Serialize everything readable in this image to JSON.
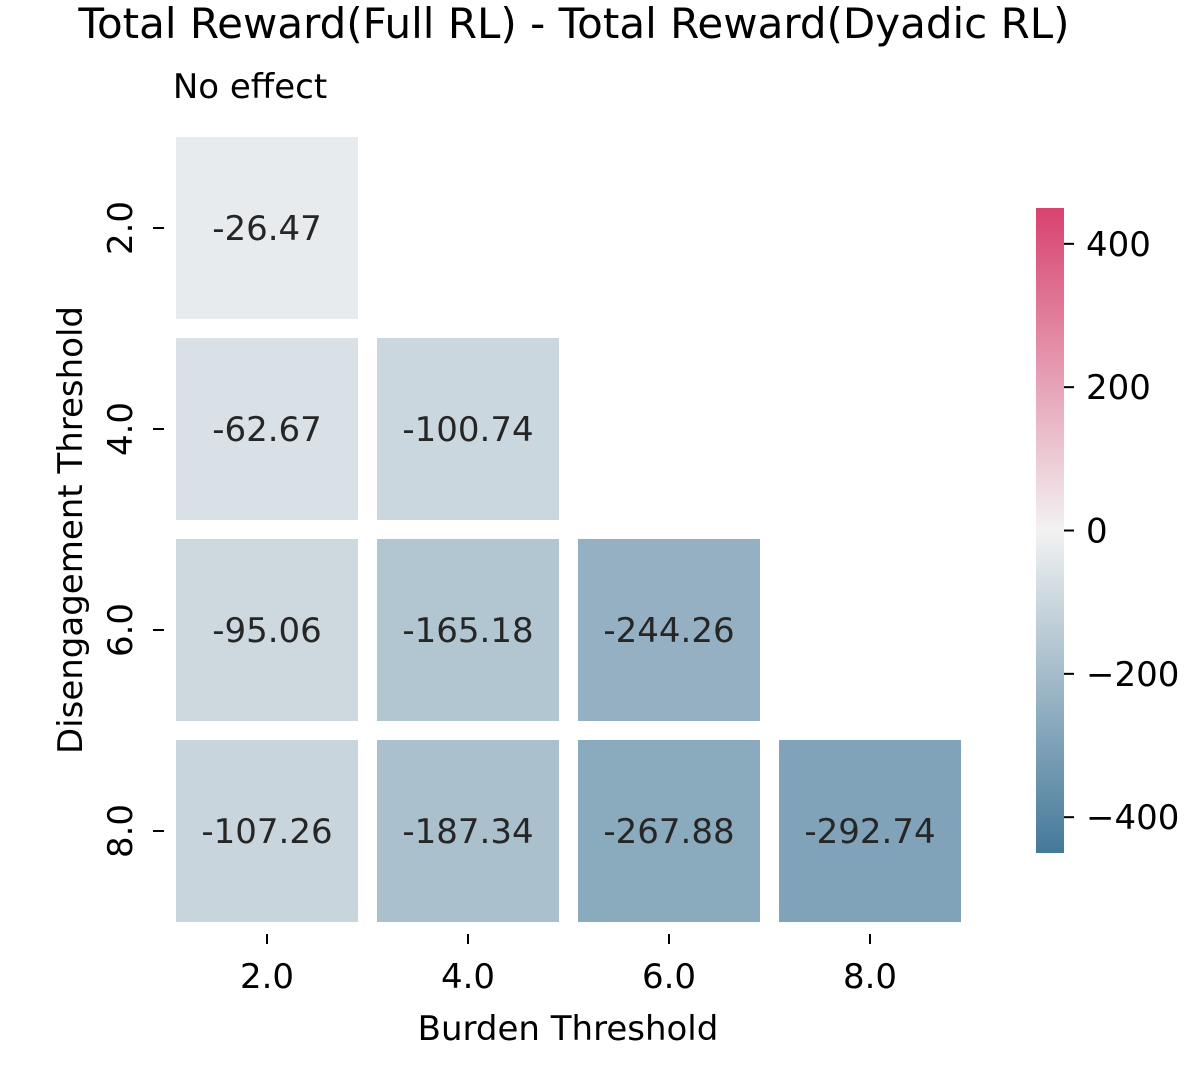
{
  "chart_data": {
    "type": "heatmap",
    "title": "Total Reward(Full RL) - Total Reward(Dyadic RL)",
    "subtitle": "No effect",
    "xlabel": "Burden Threshold",
    "ylabel": "Disengagement Threshold",
    "x_categories": [
      "2.0",
      "4.0",
      "6.0",
      "8.0"
    ],
    "y_categories": [
      "2.0",
      "4.0",
      "6.0",
      "8.0"
    ],
    "cells": [
      {
        "x": "2.0",
        "y": "2.0",
        "value": -26.47,
        "label": "-26.47"
      },
      {
        "x": "2.0",
        "y": "4.0",
        "value": -62.67,
        "label": "-62.67"
      },
      {
        "x": "4.0",
        "y": "4.0",
        "value": -100.74,
        "label": "-100.74"
      },
      {
        "x": "2.0",
        "y": "6.0",
        "value": -95.06,
        "label": "-95.06"
      },
      {
        "x": "4.0",
        "y": "6.0",
        "value": -165.18,
        "label": "-165.18"
      },
      {
        "x": "6.0",
        "y": "6.0",
        "value": -244.26,
        "label": "-244.26"
      },
      {
        "x": "2.0",
        "y": "8.0",
        "value": -107.26,
        "label": "-107.26"
      },
      {
        "x": "4.0",
        "y": "8.0",
        "value": -187.34,
        "label": "-187.34"
      },
      {
        "x": "6.0",
        "y": "8.0",
        "value": -267.88,
        "label": "-267.88"
      },
      {
        "x": "8.0",
        "y": "8.0",
        "value": -292.74,
        "label": "-292.74"
      }
    ],
    "colorbar": {
      "vmin": -450,
      "vmax": 450,
      "ticks": [
        400,
        200,
        0,
        -200,
        -400
      ],
      "tick_labels": [
        "400",
        "200",
        "0",
        "−200",
        "−400"
      ],
      "colors": {
        "min": "#44799a",
        "mid": "#f2f2f2",
        "max": "#d8426f"
      }
    },
    "grid": false,
    "legend": "colorbar-right"
  }
}
